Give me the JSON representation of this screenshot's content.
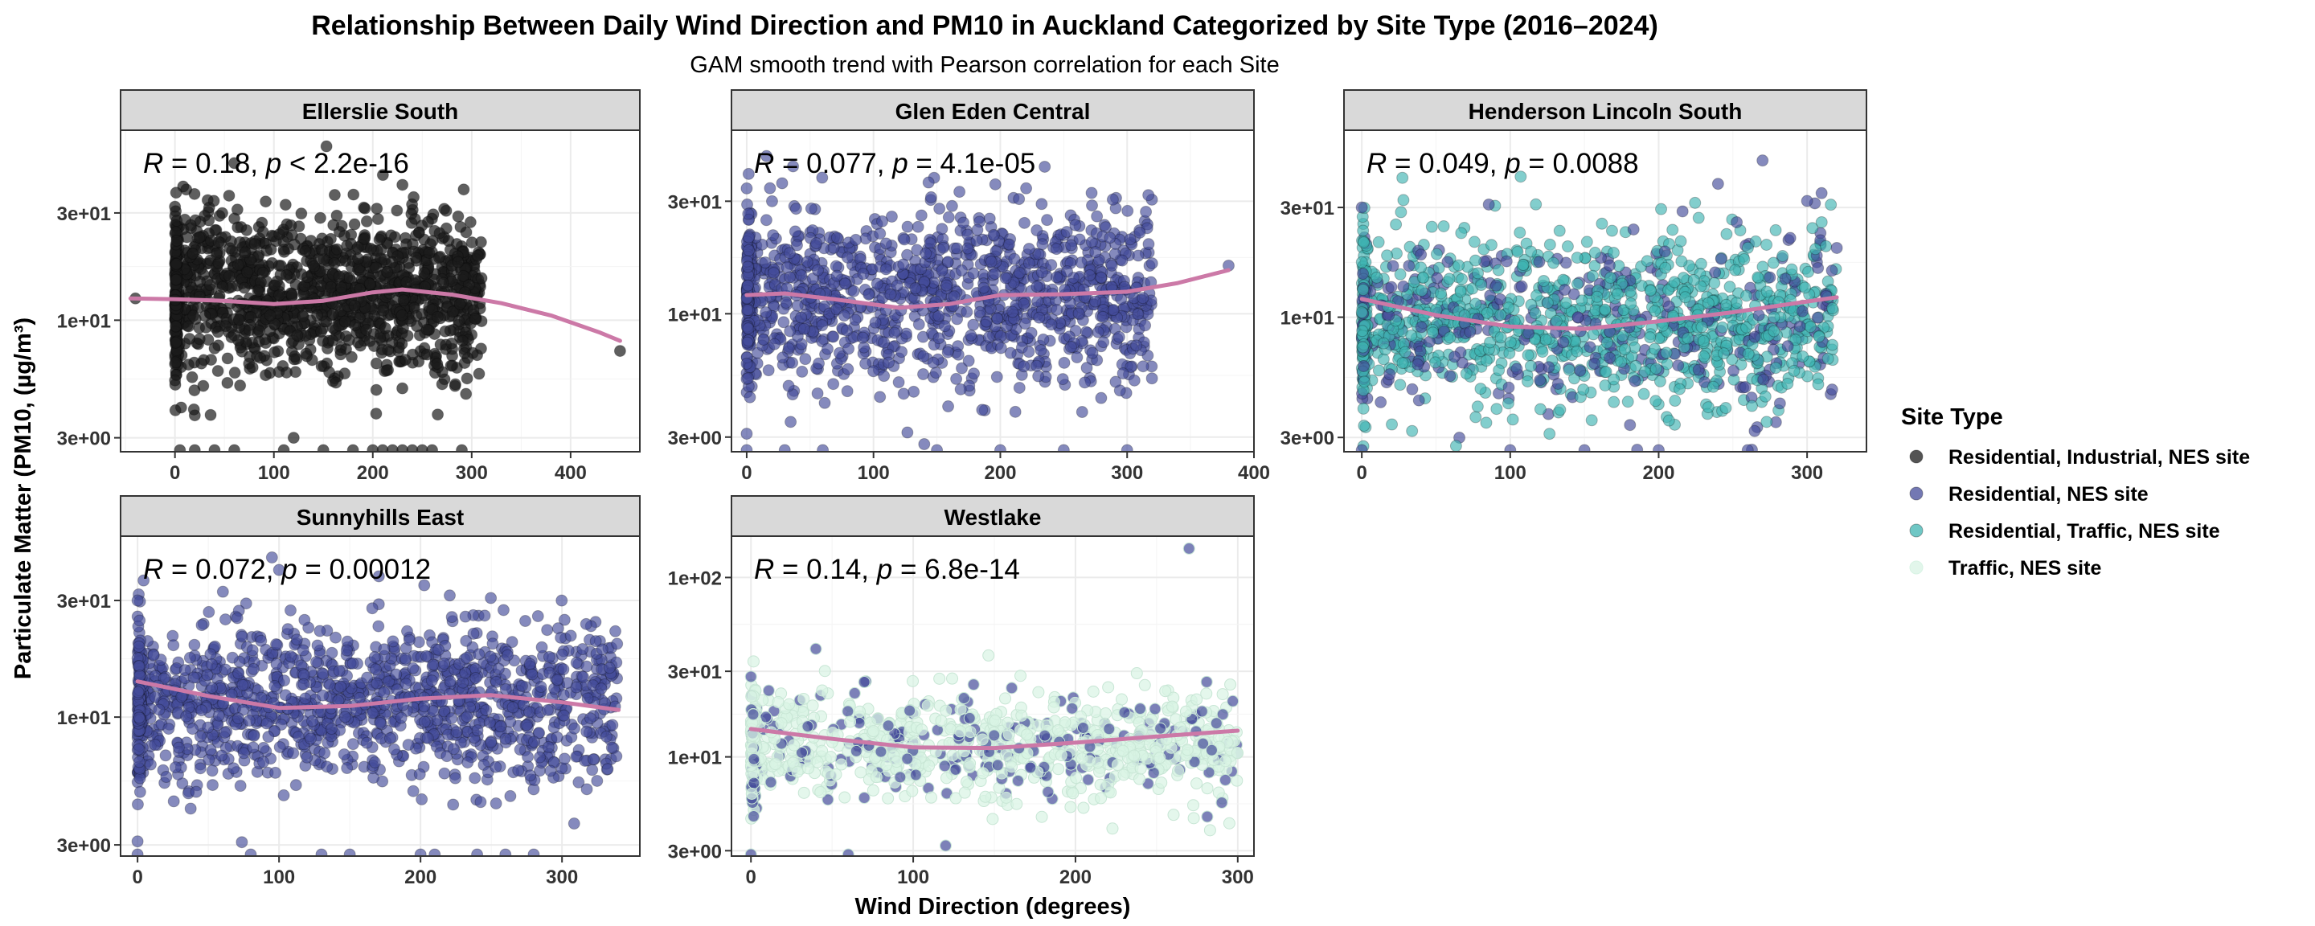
{
  "chart_data": {
    "type": "scatter",
    "title": "Relationship Between Daily Wind Direction and  PM10  in Auckland Categorized by Site Type (2016–2024)",
    "subtitle": "GAM smooth trend with Pearson correlation for each Site",
    "xlabel": "Wind Direction (degrees)",
    "ylabel": "Particulate Matter (PM10, (µg/m³)",
    "y_scale": "log10",
    "legend": {
      "title": "Site Type",
      "position": "right",
      "items": [
        {
          "label": "Residential, Industrial, NES site",
          "color": "#1b1b1b"
        },
        {
          "label": "Residential, NES site",
          "color": "#444b9a"
        },
        {
          "label": "Residential, Traffic, NES site",
          "color": "#3fb4b2"
        },
        {
          "label": "Traffic, NES site",
          "color": "#d8f3e4"
        }
      ]
    },
    "smooth_color": "#cc79a7",
    "panels": [
      {
        "name": "Ellerslie South",
        "site_type": "Residential, Industrial, NES site",
        "correlation": {
          "r_label": "R",
          "r_value": " = 0.18, ",
          "p_label": "p",
          "p_value": " < 2.2e-16"
        },
        "xlim": [
          -55,
          470
        ],
        "ylim": [
          2.6,
          70
        ],
        "x_ticks": [
          {
            "v": 0,
            "l": "0"
          },
          {
            "v": 100,
            "l": "100"
          },
          {
            "v": 200,
            "l": "200"
          },
          {
            "v": 300,
            "l": "300"
          },
          {
            "v": 400,
            "l": "400"
          }
        ],
        "y_ticks": [
          {
            "v": 3,
            "l": "3e+00"
          },
          {
            "v": 10,
            "l": "1e+01"
          },
          {
            "v": 30,
            "l": "3e+01"
          }
        ],
        "cloud": {
          "xmin": 0,
          "xmax": 310,
          "center": 13,
          "spread": 0.32,
          "n": 1300,
          "seed": 11,
          "colors": [
            {
              "c": "#1b1b1b",
              "w": 1
            }
          ],
          "opacity": 0.7
        },
        "outliers": [
          [
            -40,
            12.5
          ],
          [
            60,
            50
          ],
          [
            450,
            7.3
          ],
          [
            0,
            32
          ],
          [
            120,
            3
          ],
          [
            10,
            28
          ],
          [
            230,
            40
          ]
        ],
        "floor_points": [
          5,
          20,
          40,
          60,
          110,
          150,
          180,
          200,
          210,
          220,
          230,
          240,
          250,
          260,
          290
        ],
        "smooth": [
          [
            -45,
            12.5
          ],
          [
            0,
            12.4
          ],
          [
            50,
            12.2
          ],
          [
            100,
            11.8
          ],
          [
            150,
            12.2
          ],
          [
            200,
            13.3
          ],
          [
            230,
            13.7
          ],
          [
            280,
            13.0
          ],
          [
            330,
            11.9
          ],
          [
            380,
            10.5
          ],
          [
            430,
            8.8
          ],
          [
            450,
            8.1
          ]
        ]
      },
      {
        "name": "Glen Eden Central",
        "site_type": "Residential, NES site",
        "correlation": {
          "r_label": "R",
          "r_value": " = 0.077, ",
          "p_label": "p",
          "p_value": " = 4.1e-05"
        },
        "xlim": [
          -12,
          400
        ],
        "ylim": [
          2.6,
          60
        ],
        "x_ticks": [
          {
            "v": 0,
            "l": "0"
          },
          {
            "v": 100,
            "l": "100"
          },
          {
            "v": 200,
            "l": "200"
          },
          {
            "v": 300,
            "l": "300"
          },
          {
            "v": 400,
            "l": "400"
          }
        ],
        "y_ticks": [
          {
            "v": 3,
            "l": "3e+00"
          },
          {
            "v": 10,
            "l": "1e+01"
          },
          {
            "v": 30,
            "l": "3e+01"
          }
        ],
        "cloud": {
          "xmin": 0,
          "xmax": 320,
          "center": 11.5,
          "spread": 0.34,
          "n": 1200,
          "seed": 23,
          "colors": [
            {
              "c": "#444b9a",
              "w": 1
            }
          ],
          "opacity": 0.65
        },
        "outliers": [
          [
            235,
            42
          ],
          [
            0,
            34
          ],
          [
            380,
            16
          ],
          [
            0,
            3.1
          ],
          [
            140,
            2.8
          ],
          [
            20,
            30
          ]
        ],
        "floor_points": [
          0,
          30,
          60,
          150,
          200,
          250,
          300
        ],
        "smooth": [
          [
            0,
            12.0
          ],
          [
            30,
            12.2
          ],
          [
            70,
            11.5
          ],
          [
            120,
            10.6
          ],
          [
            160,
            11.0
          ],
          [
            200,
            12.0
          ],
          [
            250,
            12.1
          ],
          [
            300,
            12.4
          ],
          [
            340,
            13.5
          ],
          [
            380,
            15.3
          ]
        ]
      },
      {
        "name": "Henderson Lincoln South",
        "site_type": "Residential, Traffic, NES site",
        "correlation": {
          "r_label": "R",
          "r_value": " = 0.049, ",
          "p_label": "p",
          "p_value": " = 0.0088"
        },
        "xlim": [
          -12,
          340
        ],
        "ylim": [
          2.6,
          65
        ],
        "x_ticks": [
          {
            "v": 0,
            "l": "0"
          },
          {
            "v": 100,
            "l": "100"
          },
          {
            "v": 200,
            "l": "200"
          },
          {
            "v": 300,
            "l": "300"
          }
        ],
        "y_ticks": [
          {
            "v": 3,
            "l": "3e+00"
          },
          {
            "v": 10,
            "l": "1e+01"
          },
          {
            "v": 30,
            "l": "3e+01"
          }
        ],
        "cloud": {
          "xmin": 0,
          "xmax": 320,
          "center": 9.5,
          "spread": 0.34,
          "n": 1300,
          "seed": 37,
          "colors": [
            {
              "c": "#3fb4b2",
              "w": 3
            },
            {
              "c": "#444b9a",
              "w": 1
            }
          ],
          "opacity": 0.65
        },
        "outliers": [
          [
            270,
            48
          ],
          [
            240,
            38
          ],
          [
            0,
            30
          ],
          [
            300,
            32
          ],
          [
            320,
            20
          ]
        ],
        "floor_points": [
          0,
          100,
          150,
          200,
          260
        ],
        "smooth": [
          [
            0,
            12.0
          ],
          [
            50,
            10.2
          ],
          [
            100,
            9.1
          ],
          [
            150,
            8.9
          ],
          [
            200,
            9.6
          ],
          [
            250,
            10.5
          ],
          [
            300,
            11.7
          ],
          [
            320,
            12.2
          ]
        ]
      },
      {
        "name": "Sunnyhills East",
        "site_type": "Residential, NES site",
        "correlation": {
          "r_label": "R",
          "r_value": " = 0.072, ",
          "p_label": "p",
          "p_value": " = 0.00012"
        },
        "xlim": [
          -12,
          355
        ],
        "ylim": [
          2.7,
          55
        ],
        "x_ticks": [
          {
            "v": 0,
            "l": "0"
          },
          {
            "v": 100,
            "l": "100"
          },
          {
            "v": 200,
            "l": "200"
          },
          {
            "v": 300,
            "l": "300"
          }
        ],
        "y_ticks": [
          {
            "v": 3,
            "l": "3e+00"
          },
          {
            "v": 10,
            "l": "1e+01"
          },
          {
            "v": 30,
            "l": "3e+01"
          }
        ],
        "cloud": {
          "xmin": 0,
          "xmax": 340,
          "center": 11.5,
          "spread": 0.3,
          "n": 1300,
          "seed": 53,
          "colors": [
            {
              "c": "#444b9a",
              "w": 1
            }
          ],
          "opacity": 0.65
        },
        "outliers": [
          [
            95,
            45
          ],
          [
            0,
            30
          ],
          [
            0,
            3.1
          ],
          [
            100,
            40
          ],
          [
            300,
            18
          ]
        ],
        "floor_points": [
          0,
          80,
          130,
          150,
          200,
          210,
          240,
          260,
          280
        ],
        "smooth": [
          [
            0,
            14.0
          ],
          [
            50,
            12.2
          ],
          [
            100,
            10.9
          ],
          [
            150,
            11.1
          ],
          [
            200,
            11.9
          ],
          [
            250,
            12.3
          ],
          [
            300,
            11.5
          ],
          [
            340,
            10.7
          ]
        ]
      },
      {
        "name": "Westlake",
        "site_type": "Traffic, NES site",
        "correlation": {
          "r_label": "R",
          "r_value": " = 0.14, ",
          "p_label": "p",
          "p_value": " = 6.8e-14"
        },
        "xlim": [
          -12,
          310
        ],
        "ylim": [
          2.8,
          170
        ],
        "x_ticks": [
          {
            "v": 0,
            "l": "0"
          },
          {
            "v": 100,
            "l": "100"
          },
          {
            "v": 200,
            "l": "200"
          },
          {
            "v": 300,
            "l": "300"
          }
        ],
        "y_ticks": [
          {
            "v": 3,
            "l": "3e+00"
          },
          {
            "v": 10,
            "l": "1e+01"
          },
          {
            "v": 30,
            "l": "3e+01"
          },
          {
            "v": 100,
            "l": "1e+02"
          }
        ],
        "cloud": {
          "xmin": 0,
          "xmax": 300,
          "center": 11.5,
          "spread": 0.27,
          "n": 900,
          "seed": 71,
          "colors": [
            {
              "c": "#d8f3e4",
              "w": 3
            },
            {
              "c": "#444b9a",
              "w": 1
            }
          ],
          "opacity": 0.7
        },
        "outliers": [
          [
            270,
            145
          ],
          [
            40,
            40
          ],
          [
            0,
            28
          ],
          [
            120,
            3.2
          ]
        ],
        "floor_points": [
          0,
          60
        ],
        "smooth": [
          [
            0,
            14.3
          ],
          [
            50,
            12.6
          ],
          [
            100,
            11.3
          ],
          [
            150,
            11.2
          ],
          [
            200,
            12.0
          ],
          [
            250,
            13.0
          ],
          [
            300,
            14.0
          ]
        ]
      }
    ]
  }
}
